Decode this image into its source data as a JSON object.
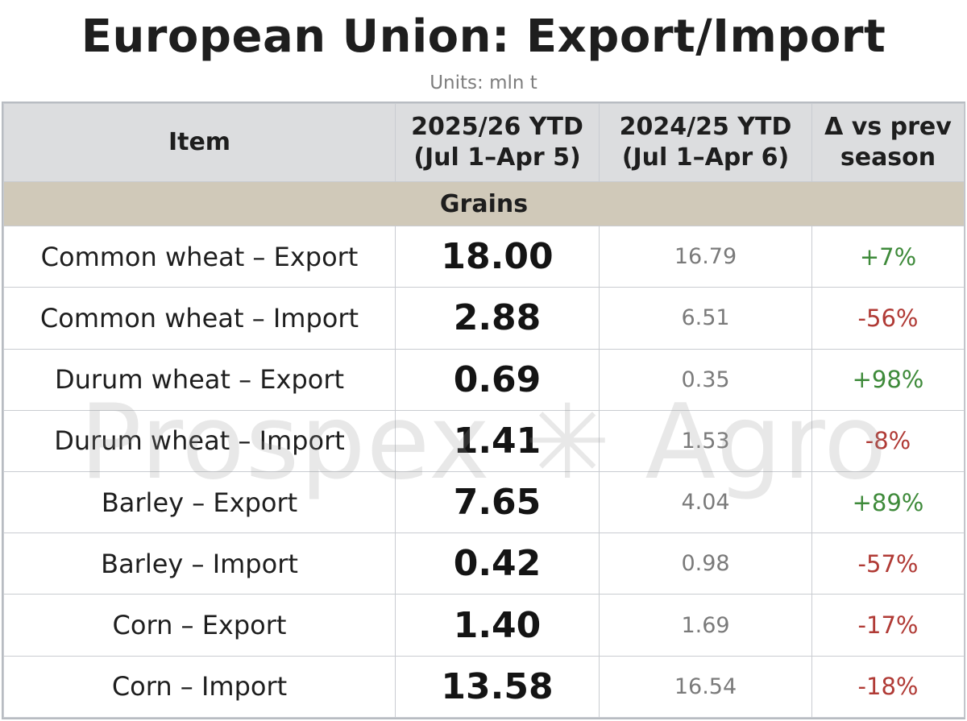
{
  "title": "European Union: Export/Import",
  "subtitle": "Units: mln t",
  "watermark": "Prospex ✳ Agro",
  "colors": {
    "header_bg": "#dcdddf",
    "section_bg": "#d0c9b9",
    "positive": "#3e8a3a",
    "negative": "#b03a35",
    "prev_value": "#7a7a7a"
  },
  "chart_data": {
    "type": "table",
    "columns": [
      {
        "line1": "Item",
        "line2": ""
      },
      {
        "line1": "2025/26 YTD",
        "line2": "(Jul 1–Apr 5)"
      },
      {
        "line1": "2024/25 YTD",
        "line2": "(Jul 1–Apr 6)"
      },
      {
        "line1": "Δ vs prev",
        "line2": "season"
      }
    ],
    "section": "Grains",
    "rows": [
      {
        "item": "Common wheat – Export",
        "current": "18.00",
        "previous": "16.79",
        "delta": "+7%",
        "direction": "pos"
      },
      {
        "item": "Common wheat – Import",
        "current": "2.88",
        "previous": "6.51",
        "delta": "-56%",
        "direction": "neg"
      },
      {
        "item": "Durum wheat – Export",
        "current": "0.69",
        "previous": "0.35",
        "delta": "+98%",
        "direction": "pos"
      },
      {
        "item": "Durum wheat – Import",
        "current": "1.41",
        "previous": "1.53",
        "delta": "-8%",
        "direction": "neg"
      },
      {
        "item": "Barley – Export",
        "current": "7.65",
        "previous": "4.04",
        "delta": "+89%",
        "direction": "pos"
      },
      {
        "item": "Barley – Import",
        "current": "0.42",
        "previous": "0.98",
        "delta": "-57%",
        "direction": "neg"
      },
      {
        "item": "Corn – Export",
        "current": "1.40",
        "previous": "1.69",
        "delta": "-17%",
        "direction": "neg"
      },
      {
        "item": "Corn – Import",
        "current": "13.58",
        "previous": "16.54",
        "delta": "-18%",
        "direction": "neg"
      }
    ]
  }
}
